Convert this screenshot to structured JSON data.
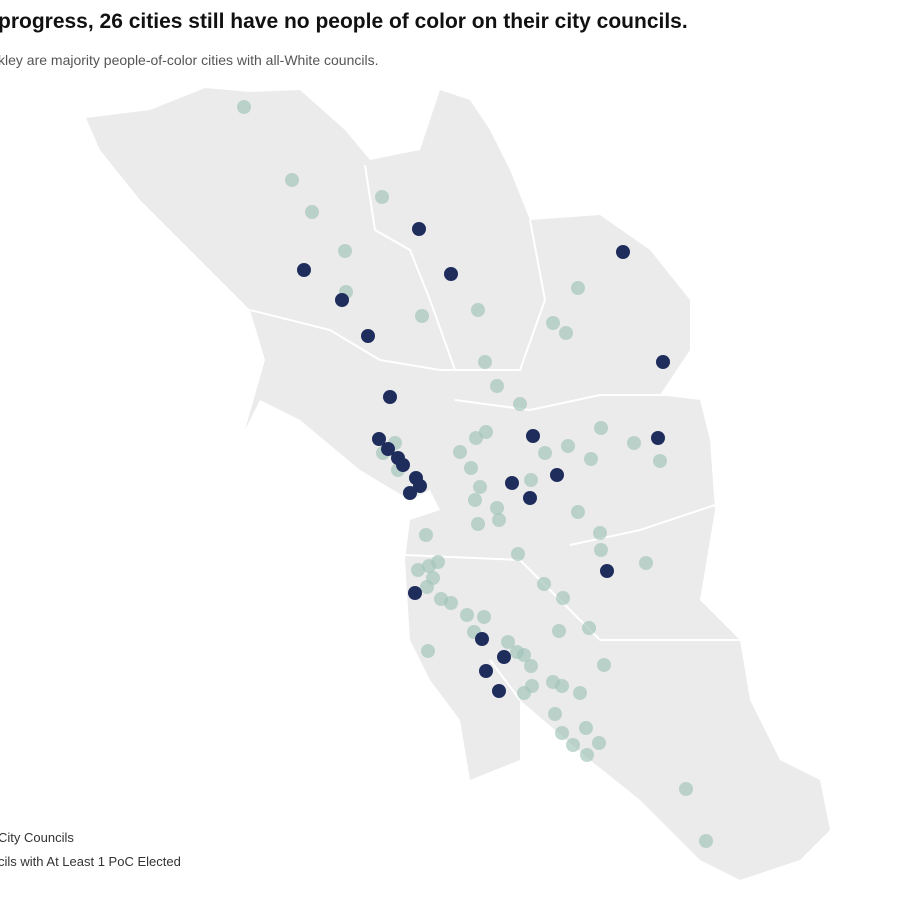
{
  "header": {
    "title": "progress, 26 cities still have no people of color on their city councils.",
    "subtitle": "kley are majority people-of-color cities with all-White councils."
  },
  "legend": {
    "items": [
      "City Councils",
      "cils with At Least 1 PoC Elected"
    ]
  }
}
